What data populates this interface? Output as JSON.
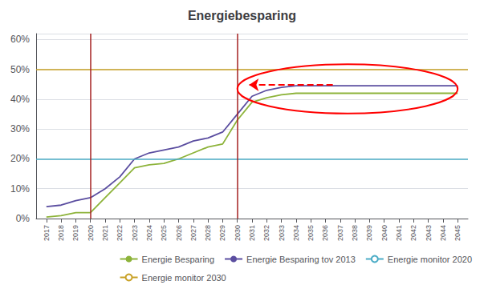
{
  "chart_data": {
    "type": "line",
    "title": "Energiebesparing",
    "x": [
      2017,
      2018,
      2019,
      2020,
      2021,
      2022,
      2023,
      2024,
      2025,
      2026,
      2027,
      2028,
      2029,
      2030,
      2031,
      2032,
      2033,
      2034,
      2035,
      2036,
      2037,
      2038,
      2039,
      2040,
      2041,
      2042,
      2043,
      2044,
      2045
    ],
    "xlim": [
      2016.3,
      2045.7
    ],
    "xticks": [
      2017,
      2018,
      2019,
      2020,
      2021,
      2022,
      2023,
      2024,
      2025,
      2026,
      2027,
      2028,
      2029,
      2030,
      2031,
      2032,
      2033,
      2034,
      2035,
      2036,
      2037,
      2038,
      2039,
      2040,
      2041,
      2042,
      2043,
      2044,
      2045
    ],
    "ylim": [
      0.0,
      0.62
    ],
    "yticks": [
      {
        "value": 0.0,
        "label": "0%"
      },
      {
        "value": 0.1,
        "label": "10%"
      },
      {
        "value": 0.2,
        "label": "20%"
      },
      {
        "value": 0.3,
        "label": "30%"
      },
      {
        "value": 0.4,
        "label": "40%"
      },
      {
        "value": 0.5,
        "label": "50%"
      },
      {
        "value": 0.6,
        "label": "60%"
      }
    ],
    "grid": true,
    "legend": "lower right",
    "series": [
      {
        "name": "Energie Besparing",
        "color": "#8db33a",
        "values": [
          0.005,
          0.01,
          0.02,
          0.02,
          0.07,
          0.12,
          0.17,
          0.18,
          0.185,
          0.2,
          0.22,
          0.24,
          0.25,
          0.33,
          0.39,
          0.405,
          0.415,
          0.42,
          0.42,
          0.42,
          0.42,
          0.42,
          0.42,
          0.42,
          0.42,
          0.42,
          0.42,
          0.42,
          0.42
        ]
      },
      {
        "name": "Energie Besparing tov 2013",
        "color": "#5b4ea0",
        "values": [
          0.04,
          0.045,
          0.06,
          0.07,
          0.1,
          0.14,
          0.2,
          0.22,
          0.23,
          0.24,
          0.26,
          0.27,
          0.29,
          0.35,
          0.41,
          0.43,
          0.44,
          0.445,
          0.445,
          0.445,
          0.445,
          0.445,
          0.445,
          0.445,
          0.445,
          0.445,
          0.445,
          0.445,
          0.445
        ]
      }
    ],
    "hlines": [
      {
        "name": "Energie monitor 2020",
        "value": 0.2,
        "color": "#4bacc6"
      },
      {
        "name": "Energie monitor 2030",
        "value": 0.5,
        "color": "#c9a227"
      }
    ],
    "vlines": [
      {
        "value": 2020,
        "color": "#a52020"
      },
      {
        "value": 2030,
        "color": "#a52020"
      }
    ],
    "ellipse": {
      "cx": 2037.5,
      "cy": 0.435,
      "width": 15.0,
      "height": 0.165,
      "color": "red"
    },
    "arrow": {
      "x_start": 2036.5,
      "x_end": 2030.8,
      "y": 0.448,
      "color": "red"
    }
  }
}
